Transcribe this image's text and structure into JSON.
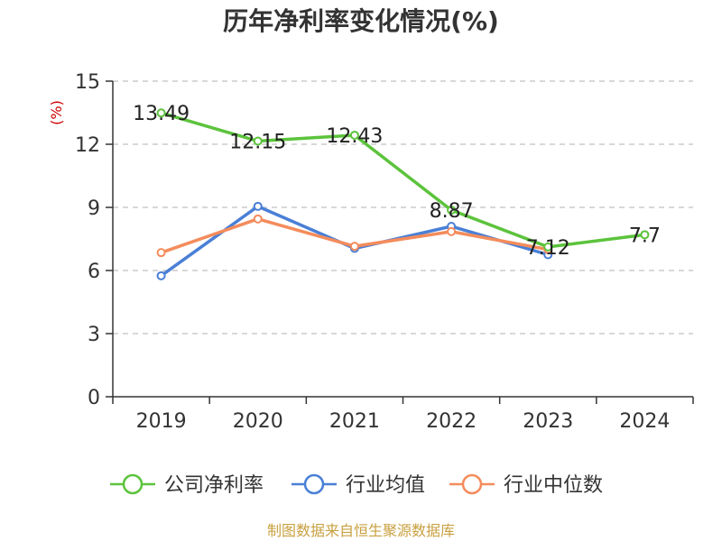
{
  "chart_data": {
    "type": "line",
    "title": "历年净利率变化情况(%)",
    "ylabel": "(%)",
    "categories": [
      "2019",
      "2020",
      "2021",
      "2022",
      "2023",
      "2024"
    ],
    "ylim": [
      0,
      15
    ],
    "yticks": [
      0,
      3,
      6,
      9,
      12,
      15
    ],
    "grid": true,
    "legend_position": "bottom",
    "series": [
      {
        "name": "公司净利率",
        "color": "#5cc33c",
        "values": [
          13.49,
          12.15,
          12.43,
          8.87,
          7.12,
          7.7
        ],
        "labels": [
          "13.49",
          "12.15",
          "12.43",
          "8.87",
          "7.12",
          "7.7"
        ]
      },
      {
        "name": "行业均值",
        "color": "#4a7fd6",
        "values": [
          5.75,
          9.05,
          7.05,
          8.1,
          6.75,
          null
        ]
      },
      {
        "name": "行业中位数",
        "color": "#f48c5c",
        "values": [
          6.85,
          8.45,
          7.15,
          7.85,
          7.0,
          null
        ]
      }
    ]
  },
  "source": "制图数据来自恒生聚源数据库"
}
